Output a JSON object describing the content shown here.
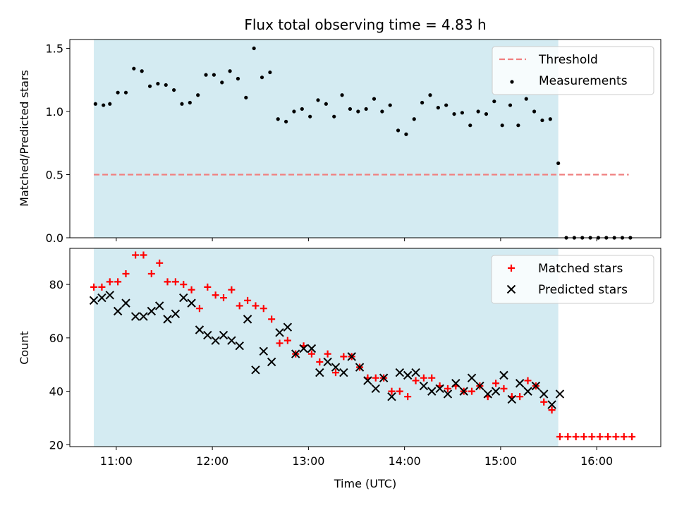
{
  "figure": {
    "title": "Flux total observing time = 4.83 h"
  },
  "chart_data": [
    {
      "type": "scatter",
      "ylabel": "Matched/Predicted stars",
      "ylim": [
        0,
        1.57
      ],
      "yticks": [
        0,
        0.5,
        1.0,
        1.5
      ],
      "ytick_labels": [
        "0.0",
        "0.5",
        "1.0",
        "1.5"
      ],
      "xlim": [
        "10:31",
        "16:40"
      ],
      "xticks": [
        "11:00",
        "12:00",
        "13:00",
        "14:00",
        "15:00",
        "16:00"
      ],
      "shaded_span": {
        "start": "10:46",
        "end": "15:36",
        "color": "#d4ebf2"
      },
      "threshold": {
        "name": "Threshold",
        "value": 0.5,
        "x_start": "10:46",
        "x_end": "16:20",
        "color": "#f08080"
      },
      "legend": {
        "placement": "upper-right",
        "entries": [
          {
            "label": "Threshold",
            "marker": "dashed-line",
            "color": "#f08080"
          },
          {
            "label": "Measurements",
            "marker": "dot",
            "color": "#000000"
          }
        ]
      },
      "series": [
        {
          "name": "Measurements",
          "color": "#000000",
          "points": [
            [
              "10:47",
              1.06
            ],
            [
              "10:52",
              1.05
            ],
            [
              "10:56",
              1.06
            ],
            [
              "11:01",
              1.15
            ],
            [
              "11:06",
              1.15
            ],
            [
              "11:11",
              1.34
            ],
            [
              "11:16",
              1.32
            ],
            [
              "11:21",
              1.2
            ],
            [
              "11:26",
              1.22
            ],
            [
              "11:31",
              1.21
            ],
            [
              "11:36",
              1.17
            ],
            [
              "11:41",
              1.06
            ],
            [
              "11:46",
              1.07
            ],
            [
              "11:51",
              1.13
            ],
            [
              "11:56",
              1.29
            ],
            [
              "12:01",
              1.29
            ],
            [
              "12:06",
              1.23
            ],
            [
              "12:11",
              1.32
            ],
            [
              "12:16",
              1.26
            ],
            [
              "12:21",
              1.11
            ],
            [
              "12:26",
              1.5
            ],
            [
              "12:31",
              1.27
            ],
            [
              "12:36",
              1.31
            ],
            [
              "12:41",
              0.94
            ],
            [
              "12:46",
              0.92
            ],
            [
              "12:51",
              1.0
            ],
            [
              "12:56",
              1.02
            ],
            [
              "13:01",
              0.96
            ],
            [
              "13:06",
              1.09
            ],
            [
              "13:11",
              1.06
            ],
            [
              "13:16",
              0.96
            ],
            [
              "13:21",
              1.13
            ],
            [
              "13:26",
              1.02
            ],
            [
              "13:31",
              1.0
            ],
            [
              "13:36",
              1.02
            ],
            [
              "13:41",
              1.1
            ],
            [
              "13:46",
              1.0
            ],
            [
              "13:51",
              1.05
            ],
            [
              "13:56",
              0.85
            ],
            [
              "14:01",
              0.82
            ],
            [
              "14:06",
              0.94
            ],
            [
              "14:11",
              1.07
            ],
            [
              "14:16",
              1.13
            ],
            [
              "14:21",
              1.03
            ],
            [
              "14:26",
              1.05
            ],
            [
              "14:31",
              0.98
            ],
            [
              "14:36",
              0.99
            ],
            [
              "14:41",
              0.89
            ],
            [
              "14:46",
              1.0
            ],
            [
              "14:51",
              0.98
            ],
            [
              "14:56",
              1.08
            ],
            [
              "15:01",
              0.89
            ],
            [
              "15:06",
              1.05
            ],
            [
              "15:11",
              0.89
            ],
            [
              "15:16",
              1.1
            ],
            [
              "15:21",
              1.0
            ],
            [
              "15:26",
              0.93
            ],
            [
              "15:31",
              0.94
            ],
            [
              "15:36",
              0.59
            ],
            [
              "15:41",
              0.0
            ],
            [
              "15:46",
              0.0
            ],
            [
              "15:51",
              0.0
            ],
            [
              "15:56",
              0.0
            ],
            [
              "16:01",
              0.0
            ],
            [
              "16:06",
              0.0
            ],
            [
              "16:11",
              0.0
            ],
            [
              "16:16",
              0.0
            ],
            [
              "16:21",
              0.0
            ]
          ]
        }
      ]
    },
    {
      "type": "scatter",
      "xlabel": "Time (UTC)",
      "ylabel": "Count",
      "ylim": [
        19.3,
        93.5
      ],
      "yticks": [
        20,
        40,
        60,
        80
      ],
      "ytick_labels": [
        "20",
        "40",
        "60",
        "80"
      ],
      "xlim": [
        "10:31",
        "16:40"
      ],
      "xticks": [
        "11:00",
        "12:00",
        "13:00",
        "14:00",
        "15:00",
        "16:00"
      ],
      "xtick_labels": [
        "11:00",
        "12:00",
        "13:00",
        "14:00",
        "15:00",
        "16:00"
      ],
      "shaded_span": {
        "start": "10:46",
        "end": "15:36",
        "color": "#d4ebf2"
      },
      "legend": {
        "placement": "upper-right",
        "entries": [
          {
            "label": "Matched stars",
            "marker": "plus",
            "color": "#ff0000"
          },
          {
            "label": "Predicted stars",
            "marker": "x",
            "color": "#000000"
          }
        ]
      },
      "series": [
        {
          "name": "Matched stars",
          "marker": "plus",
          "color": "#ff0000",
          "points": [
            [
              "10:46",
              79
            ],
            [
              "10:51",
              79
            ],
            [
              "10:56",
              81
            ],
            [
              "11:01",
              81
            ],
            [
              "11:06",
              84
            ],
            [
              "11:12",
              91
            ],
            [
              "11:17",
              91
            ],
            [
              "11:22",
              84
            ],
            [
              "11:27",
              88
            ],
            [
              "11:32",
              81
            ],
            [
              "11:37",
              81
            ],
            [
              "11:42",
              80
            ],
            [
              "11:47",
              78
            ],
            [
              "11:52",
              71
            ],
            [
              "11:57",
              79
            ],
            [
              "12:02",
              76
            ],
            [
              "12:07",
              75
            ],
            [
              "12:12",
              78
            ],
            [
              "12:17",
              72
            ],
            [
              "12:22",
              74
            ],
            [
              "12:27",
              72
            ],
            [
              "12:32",
              71
            ],
            [
              "12:37",
              67
            ],
            [
              "12:42",
              58
            ],
            [
              "12:47",
              59
            ],
            [
              "12:52",
              54
            ],
            [
              "12:57",
              57
            ],
            [
              "13:02",
              54
            ],
            [
              "13:07",
              51
            ],
            [
              "13:12",
              54
            ],
            [
              "13:17",
              47
            ],
            [
              "13:22",
              53
            ],
            [
              "13:27",
              53
            ],
            [
              "13:32",
              49
            ],
            [
              "13:37",
              45
            ],
            [
              "13:42",
              45
            ],
            [
              "13:47",
              45
            ],
            [
              "13:52",
              40
            ],
            [
              "13:57",
              40
            ],
            [
              "14:02",
              38
            ],
            [
              "14:07",
              44
            ],
            [
              "14:12",
              45
            ],
            [
              "14:17",
              45
            ],
            [
              "14:22",
              42
            ],
            [
              "14:27",
              41
            ],
            [
              "14:32",
              42
            ],
            [
              "14:37",
              40
            ],
            [
              "14:42",
              40
            ],
            [
              "14:47",
              42
            ],
            [
              "14:52",
              38
            ],
            [
              "14:57",
              43
            ],
            [
              "15:02",
              41
            ],
            [
              "15:07",
              38
            ],
            [
              "15:12",
              38
            ],
            [
              "15:17",
              44
            ],
            [
              "15:22",
              42
            ],
            [
              "15:27",
              36
            ],
            [
              "15:32",
              33
            ],
            [
              "15:37",
              23
            ],
            [
              "15:42",
              23
            ],
            [
              "15:47",
              23
            ],
            [
              "15:52",
              23
            ],
            [
              "15:57",
              23
            ],
            [
              "16:02",
              23
            ],
            [
              "16:07",
              23
            ],
            [
              "16:12",
              23
            ],
            [
              "16:17",
              23
            ],
            [
              "16:22",
              23
            ]
          ]
        },
        {
          "name": "Predicted stars",
          "marker": "x",
          "color": "#000000",
          "points": [
            [
              "10:46",
              74
            ],
            [
              "10:51",
              75
            ],
            [
              "10:56",
              76
            ],
            [
              "11:01",
              70
            ],
            [
              "11:06",
              73
            ],
            [
              "11:12",
              68
            ],
            [
              "11:17",
              68
            ],
            [
              "11:22",
              70
            ],
            [
              "11:27",
              72
            ],
            [
              "11:32",
              67
            ],
            [
              "11:37",
              69
            ],
            [
              "11:42",
              75
            ],
            [
              "11:47",
              73
            ],
            [
              "11:52",
              63
            ],
            [
              "11:57",
              61
            ],
            [
              "12:02",
              59
            ],
            [
              "12:07",
              61
            ],
            [
              "12:12",
              59
            ],
            [
              "12:17",
              57
            ],
            [
              "12:22",
              67
            ],
            [
              "12:27",
              48
            ],
            [
              "12:32",
              55
            ],
            [
              "12:37",
              51
            ],
            [
              "12:42",
              62
            ],
            [
              "12:47",
              64
            ],
            [
              "12:52",
              54
            ],
            [
              "12:57",
              56
            ],
            [
              "13:02",
              56
            ],
            [
              "13:07",
              47
            ],
            [
              "13:12",
              51
            ],
            [
              "13:17",
              49
            ],
            [
              "13:22",
              47
            ],
            [
              "13:27",
              53
            ],
            [
              "13:32",
              49
            ],
            [
              "13:37",
              44
            ],
            [
              "13:42",
              41
            ],
            [
              "13:47",
              45
            ],
            [
              "13:52",
              38
            ],
            [
              "13:57",
              47
            ],
            [
              "14:02",
              46
            ],
            [
              "14:07",
              47
            ],
            [
              "14:12",
              42
            ],
            [
              "14:17",
              40
            ],
            [
              "14:22",
              41
            ],
            [
              "14:27",
              39
            ],
            [
              "14:32",
              43
            ],
            [
              "14:37",
              40
            ],
            [
              "14:42",
              45
            ],
            [
              "14:47",
              42
            ],
            [
              "14:52",
              39
            ],
            [
              "14:57",
              40
            ],
            [
              "15:02",
              46
            ],
            [
              "15:07",
              37
            ],
            [
              "15:12",
              43
            ],
            [
              "15:17",
              40
            ],
            [
              "15:22",
              42
            ],
            [
              "15:27",
              39
            ],
            [
              "15:32",
              35
            ],
            [
              "15:37",
              39
            ]
          ]
        }
      ]
    }
  ]
}
